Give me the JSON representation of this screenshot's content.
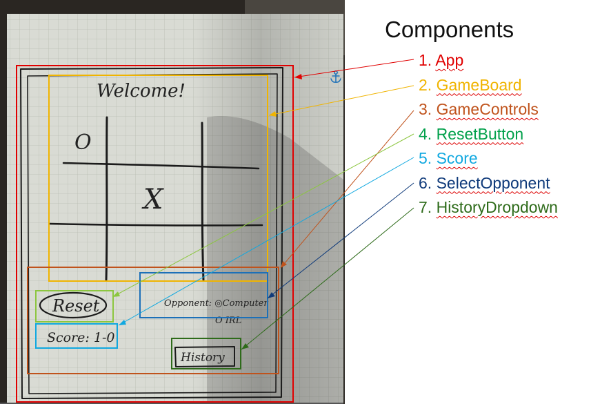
{
  "legend": {
    "title": "Components",
    "items": [
      {
        "num": "1.",
        "label": "App",
        "color": "#e00000"
      },
      {
        "num": "2.",
        "label": "GameBoard",
        "color": "#f0b400"
      },
      {
        "num": "3.",
        "label": "GameControls",
        "color": "#c0531c"
      },
      {
        "num": "4.",
        "label": "ResetButton",
        "color": "#00a04a"
      },
      {
        "num": "5.",
        "label": "Score",
        "color": "#10a8e0"
      },
      {
        "num": "6.",
        "label": "SelectOpponent",
        "color": "#0f3a7a"
      },
      {
        "num": "7.",
        "label": "HistoryDropdown",
        "color": "#2e6b1a"
      }
    ]
  },
  "sketch": {
    "welcome": "Welcome!",
    "cell_o": "O",
    "cell_x": "X",
    "reset": "Reset",
    "opponent": "Opponent: ◎Computer",
    "opponent_option": "O IRL",
    "score": "Score: 1-0",
    "history": "History",
    "anchor_icon": "anchor-icon"
  }
}
